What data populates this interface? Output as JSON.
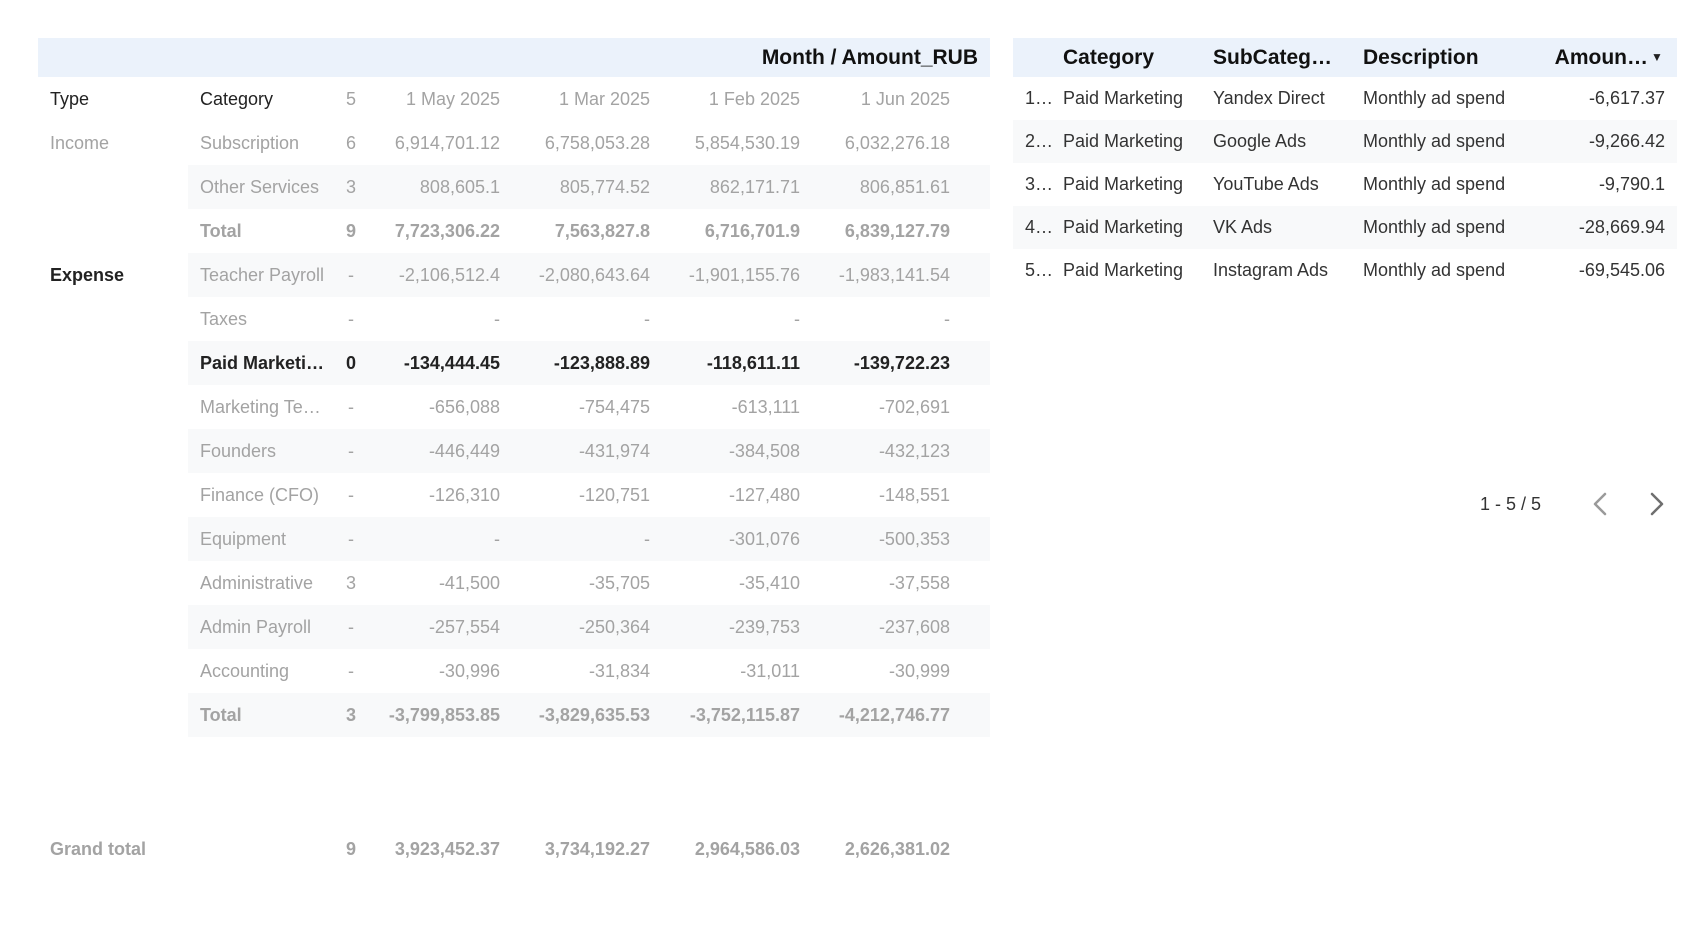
{
  "pivot": {
    "header_title": "Month / Amount_RUB",
    "column_headers": {
      "type": "Type",
      "category": "Category",
      "count": "5",
      "months": [
        "1 May 2025",
        "1 Mar 2025",
        "1 Feb 2025",
        "1 Jun 2025"
      ]
    },
    "rows": [
      {
        "type": "Income",
        "category": "Subscription",
        "count": "6",
        "values": [
          "6,914,701.12",
          "6,758,053.28",
          "5,854,530.19",
          "6,032,276.18"
        ]
      },
      {
        "type": "",
        "category": "Other Services",
        "count": "3",
        "values": [
          "808,605.1",
          "805,774.52",
          "862,171.71",
          "806,851.61"
        ]
      },
      {
        "type": "",
        "category": "Total",
        "count": "9",
        "values": [
          "7,723,306.22",
          "7,563,827.8",
          "6,716,701.9",
          "6,839,127.79"
        ]
      },
      {
        "type": "Expense",
        "category": "Teacher Payroll",
        "count": "-",
        "values": [
          "-2,106,512.4",
          "-2,080,643.64",
          "-1,901,155.76",
          "-1,983,141.54"
        ]
      },
      {
        "type": "",
        "category": "Taxes",
        "count": "-",
        "values": [
          "-",
          "-",
          "-",
          "-"
        ]
      },
      {
        "type": "",
        "category": "Paid Marketi…",
        "count": "0",
        "values": [
          "-134,444.45",
          "-123,888.89",
          "-118,611.11",
          "-139,722.23"
        ]
      },
      {
        "type": "",
        "category": "Marketing Te…",
        "count": "-",
        "values": [
          "-656,088",
          "-754,475",
          "-613,111",
          "-702,691"
        ]
      },
      {
        "type": "",
        "category": "Founders",
        "count": "-",
        "values": [
          "-446,449",
          "-431,974",
          "-384,508",
          "-432,123"
        ]
      },
      {
        "type": "",
        "category": "Finance (CFO)",
        "count": "-",
        "values": [
          "-126,310",
          "-120,751",
          "-127,480",
          "-148,551"
        ]
      },
      {
        "type": "",
        "category": "Equipment",
        "count": "-",
        "values": [
          "-",
          "-",
          "-301,076",
          "-500,353"
        ]
      },
      {
        "type": "",
        "category": "Administrative",
        "count": "3",
        "values": [
          "-41,500",
          "-35,705",
          "-35,410",
          "-37,558"
        ]
      },
      {
        "type": "",
        "category": "Admin Payroll",
        "count": "-",
        "values": [
          "-257,554",
          "-250,364",
          "-239,753",
          "-237,608"
        ]
      },
      {
        "type": "",
        "category": "Accounting",
        "count": "-",
        "values": [
          "-30,996",
          "-31,834",
          "-31,011",
          "-30,999"
        ]
      },
      {
        "type": "",
        "category": "Total",
        "count": "3",
        "values": [
          "-3,799,853.85",
          "-3,829,635.53",
          "-3,752,115.87",
          "-4,212,746.77"
        ]
      }
    ],
    "grand_total": {
      "label": "Grand total",
      "count": "9",
      "values": [
        "3,923,452.37",
        "3,734,192.27",
        "2,964,586.03",
        "2,626,381.02"
      ]
    }
  },
  "detail": {
    "headers": {
      "category": "Category",
      "subcategory": "SubCateg…",
      "description": "Description",
      "amount": "Amoun…"
    },
    "sort_icon": "sort-descending-icon",
    "rows": [
      {
        "num": "1…",
        "category": "Paid Marketing",
        "subcategory": "Yandex Direct",
        "description": "Monthly ad spend",
        "amount": "-6,617.37"
      },
      {
        "num": "2…",
        "category": "Paid Marketing",
        "subcategory": "Google Ads",
        "description": "Monthly ad spend",
        "amount": "-9,266.42"
      },
      {
        "num": "3…",
        "category": "Paid Marketing",
        "subcategory": "YouTube Ads",
        "description": "Monthly ad spend",
        "amount": "-9,790.1"
      },
      {
        "num": "4…",
        "category": "Paid Marketing",
        "subcategory": "VK Ads",
        "description": "Monthly ad spend",
        "amount": "-28,669.94"
      },
      {
        "num": "5…",
        "category": "Paid Marketing",
        "subcategory": "Instagram Ads",
        "description": "Monthly ad spend",
        "amount": "-69,545.06"
      }
    ],
    "pagination": {
      "label": "1 - 5 / 5",
      "prev_icon": "chevron-left-icon",
      "next_icon": "chevron-right-icon"
    }
  },
  "colors": {
    "header_bg": "#ebf2fb",
    "row_stripe": "#f8f9fa",
    "muted_text": "#a3a3a3",
    "dark_text": "#222222"
  }
}
